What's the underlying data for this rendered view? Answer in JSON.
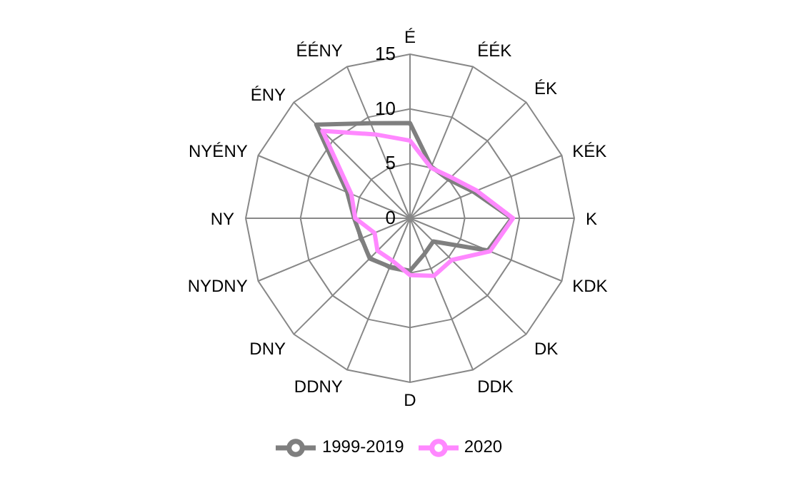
{
  "chart_data": {
    "type": "radar",
    "categories": [
      "É",
      "ÉÉK",
      "ÉK",
      "KÉK",
      "K",
      "KDK",
      "DK",
      "DDK",
      "D",
      "DDNY",
      "DNY",
      "NYDNY",
      "NY",
      "NYÉNY",
      "ÉNY",
      "ÉÉNY"
    ],
    "series": [
      {
        "name": "1999-2019",
        "color": "#7f7f7f",
        "values": [
          8.7,
          5.1,
          5.0,
          6.3,
          9.3,
          7.7,
          3.0,
          3.5,
          4.8,
          4.8,
          5.2,
          4.8,
          5.1,
          6.2,
          12.1,
          9.4
        ]
      },
      {
        "name": "2020",
        "color": "#ff88ff",
        "values": [
          7.1,
          5.0,
          5.3,
          6.6,
          9.4,
          7.9,
          5.4,
          5.7,
          5.2,
          4.2,
          4.2,
          3.5,
          5.0,
          5.8,
          11.3,
          8.3
        ]
      }
    ],
    "ylim": [
      0,
      15
    ],
    "yticks": [
      0,
      5,
      10,
      15
    ],
    "grid": true,
    "legend": "bottom",
    "marker": "none",
    "line_style": "solid"
  }
}
